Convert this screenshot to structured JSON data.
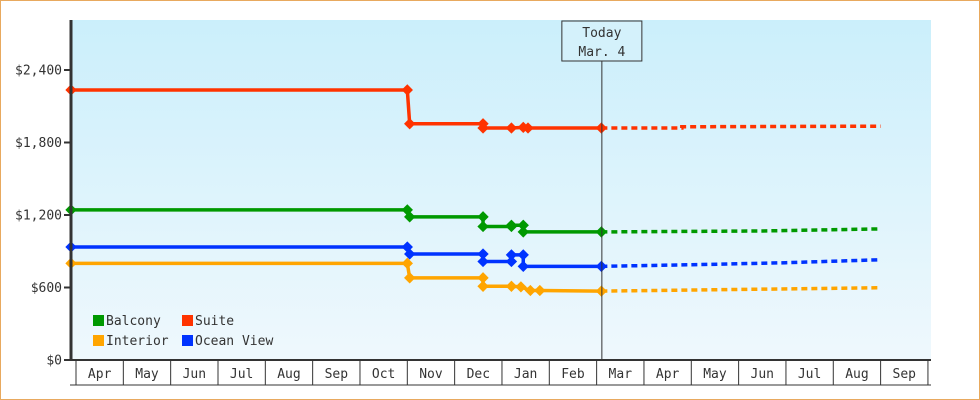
{
  "chart_data": {
    "type": "line",
    "title": "",
    "xlabel": "",
    "ylabel": "",
    "ylim": [
      0,
      2800
    ],
    "yticks": [
      {
        "value": 0,
        "label": "$0"
      },
      {
        "value": 600,
        "label": "$600"
      },
      {
        "value": 1200,
        "label": "$1,200"
      },
      {
        "value": 1800,
        "label": "$1,800"
      },
      {
        "value": 2400,
        "label": "$2,400"
      }
    ],
    "categories": [
      "Apr",
      "May",
      "Jun",
      "Jul",
      "Aug",
      "Sep",
      "Oct",
      "Nov",
      "Dec",
      "Jan",
      "Feb",
      "Mar",
      "Apr",
      "May",
      "Jun",
      "Jul",
      "Aug",
      "Sep"
    ],
    "grid": false,
    "legend_position": "bottom-left inside",
    "today_marker": {
      "line1": "Today",
      "line2": "Mar. 4",
      "month_index": 11.1
    },
    "series": [
      {
        "name": "Suite",
        "color": "#ff3300",
        "points": [
          [
            0,
            2235
          ],
          [
            7.0,
            2235
          ],
          [
            7.05,
            1955
          ],
          [
            8.6,
            1955
          ],
          [
            8.6,
            1920
          ],
          [
            9.2,
            1920
          ],
          [
            9.45,
            1925
          ],
          [
            9.55,
            1920
          ],
          [
            9.8,
            1920
          ],
          [
            11.1,
            1920
          ]
        ],
        "forecast": [
          [
            11.1,
            1920
          ],
          [
            12.8,
            1920
          ],
          [
            12.8,
            1930
          ],
          [
            17.0,
            1935
          ]
        ]
      },
      {
        "name": "Balcony",
        "color": "#009900",
        "points": [
          [
            0,
            1242
          ],
          [
            7.0,
            1242
          ],
          [
            7.05,
            1185
          ],
          [
            7.2,
            1185
          ],
          [
            8.6,
            1185
          ],
          [
            8.6,
            1105
          ],
          [
            9.2,
            1105
          ],
          [
            9.2,
            1115
          ],
          [
            9.45,
            1115
          ],
          [
            9.45,
            1060
          ],
          [
            9.8,
            1060
          ],
          [
            11.1,
            1060
          ]
        ],
        "forecast": [
          [
            11.1,
            1060
          ],
          [
            14.5,
            1068
          ],
          [
            17.0,
            1085
          ]
        ]
      },
      {
        "name": "Ocean View",
        "color": "#0033ff",
        "points": [
          [
            0,
            935
          ],
          [
            7.0,
            935
          ],
          [
            7.05,
            877
          ],
          [
            7.2,
            877
          ],
          [
            8.6,
            877
          ],
          [
            8.6,
            815
          ],
          [
            9.2,
            815
          ],
          [
            9.2,
            870
          ],
          [
            9.45,
            870
          ],
          [
            9.45,
            775
          ],
          [
            9.8,
            775
          ],
          [
            11.1,
            775
          ]
        ],
        "forecast": [
          [
            11.1,
            775
          ],
          [
            13.2,
            790
          ],
          [
            15.0,
            805
          ],
          [
            17.0,
            830
          ]
        ]
      },
      {
        "name": "Interior",
        "color": "#ffa500",
        "points": [
          [
            0,
            800
          ],
          [
            7.0,
            800
          ],
          [
            7.05,
            680
          ],
          [
            8.6,
            680
          ],
          [
            8.6,
            610
          ],
          [
            9.2,
            610
          ],
          [
            9.4,
            605
          ],
          [
            9.6,
            575
          ],
          [
            9.8,
            575
          ],
          [
            11.1,
            570
          ]
        ],
        "forecast": [
          [
            11.1,
            570
          ],
          [
            13.2,
            580
          ],
          [
            17.0,
            598
          ]
        ]
      }
    ]
  },
  "legend": {
    "items": [
      {
        "label": "Balcony",
        "color": "#009900"
      },
      {
        "label": "Suite",
        "color": "#ff3300"
      },
      {
        "label": "Interior",
        "color": "#ffa500"
      },
      {
        "label": "Ocean View",
        "color": "#0033ff"
      }
    ]
  },
  "today": {
    "line1": "Today",
    "line2": "Mar. 4"
  },
  "colors": {
    "frame": "#e8a95e",
    "plot_top": "#cbeffb",
    "plot_bottom": "#eff8fd",
    "axis": "#333333"
  }
}
